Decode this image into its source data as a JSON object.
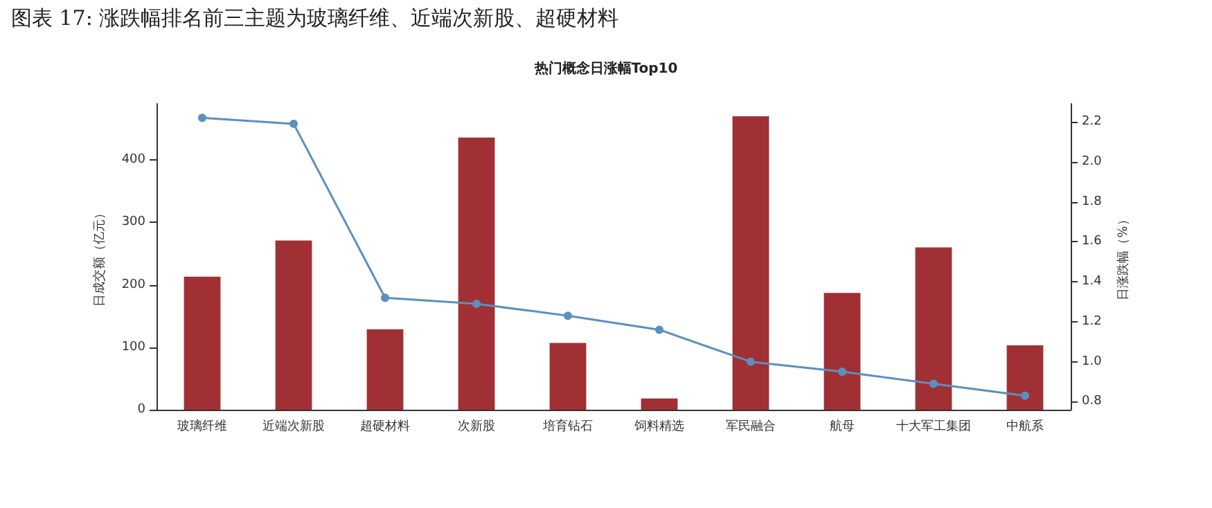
{
  "chart_data": {
    "type": "bar",
    "title": "图表 17: 涨跌幅排名前三主题为玻璃纤维、近端次新股、超硬材料",
    "subtitle": "热门概念日涨幅Top10",
    "ylabel": "日成交额（亿元）",
    "y2label": "日涨跌幅（%）",
    "categories": [
      "玻璃纤维",
      "近端次新股",
      "超硬材料",
      "次新股",
      "培育钻石",
      "饲料精选",
      "军民融合",
      "航母",
      "十大军工集团",
      "中航系"
    ],
    "series": [
      {
        "color": "#a03033",
        "values": [
          213,
          271,
          129,
          436,
          107,
          18,
          470,
          187,
          260,
          103
        ]
      },
      {
        "type": "line",
        "axis": "y2",
        "color": "#5b8fc0",
        "marker": "circle",
        "values": [
          2.22,
          2.19,
          1.32,
          1.29,
          1.23,
          1.16,
          1.0,
          0.95,
          0.89,
          0.83
        ]
      }
    ],
    "ylim": [
      0,
      490
    ],
    "yticks": [
      0,
      100,
      200,
      300,
      400
    ],
    "y2lim": [
      0.76,
      2.29
    ],
    "y2ticks": [
      0.8,
      {
        "value": 1,
        "label": "1.0"
      },
      1.2,
      1.4,
      1.6,
      1.8,
      {
        "value": 2,
        "label": "2.0"
      },
      2.2
    ],
    "grid": false
  }
}
